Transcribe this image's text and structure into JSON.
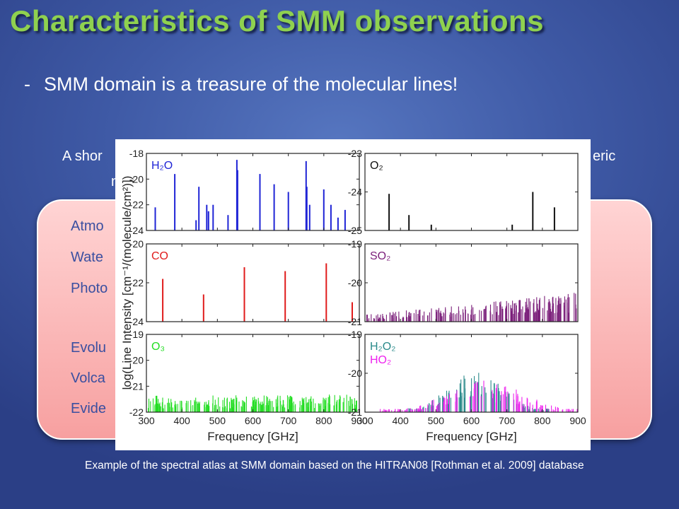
{
  "slide": {
    "title": "Characteristics of SMM observations",
    "bullet_dash": "-",
    "bullet": "SMM domain is a treasure of the molecular lines!",
    "intro_line1_left": "A shor",
    "intro_line1_right": "eric",
    "intro_line2": "m",
    "pink_items": [
      "Atmo",
      "Wate",
      "Photo",
      "Evolu",
      "Volca",
      "Evide"
    ],
    "caption": "Example of the spectral atlas at SMM domain based on the HITRAN08 [Rothman et al. 2009] database"
  },
  "colors": {
    "title": "#8fd14f",
    "H2O": "#1f24d6",
    "O2": "#111111",
    "CO": "#e01b1b",
    "SO2": "#7b1f7a",
    "O3": "#22dd22",
    "H2O2": "#2a8a8a",
    "HO2": "#ee22ee"
  },
  "chart_data": {
    "type": "bar",
    "xlabel": "Frequency [GHz]",
    "ylabel": "log(Line Intensity [cm⁻¹/(molecule/cm²)])",
    "xlim": [
      300,
      900
    ],
    "xticks": [
      300,
      400,
      500,
      600,
      700,
      800,
      900
    ],
    "panels": [
      {
        "id": "H2O",
        "label": "H₂O",
        "side": "left",
        "row": 0,
        "ylim": [
          -24,
          -18
        ],
        "yticks": [
          -24,
          -22,
          -20,
          -18
        ],
        "series": [
          {
            "name": "H₂O",
            "color": "#1f24d6",
            "x": [
              325,
              380,
              440,
              448,
              470,
              475,
              488,
              530,
              555,
              557,
              620,
              660,
              700,
              750,
              752,
              760,
              800,
              820,
              840,
              860
            ],
            "y": [
              -22.2,
              -19.6,
              -23.2,
              -20.6,
              -22.0,
              -22.5,
              -22.0,
              -22.8,
              -18.5,
              -19.3,
              -19.6,
              -20.4,
              -21.0,
              -18.6,
              -20.6,
              -22.0,
              -20.8,
              -22.0,
              -23.0,
              -22.4
            ]
          }
        ]
      },
      {
        "id": "O2",
        "label": "O₂",
        "side": "right",
        "row": 0,
        "ylim": [
          -25,
          -23
        ],
        "yticks": [
          -25,
          -24,
          -23
        ],
        "series": [
          {
            "name": "O₂",
            "color": "#111111",
            "x": [
              368,
              424,
              487,
              715,
              773,
              834
            ],
            "y": [
              -24.05,
              -24.6,
              -24.85,
              -24.85,
              -24.0,
              -24.4
            ]
          }
        ]
      },
      {
        "id": "CO",
        "label": "CO",
        "side": "left",
        "row": 1,
        "ylim": [
          -24,
          -20
        ],
        "yticks": [
          -24,
          -22,
          -20
        ],
        "series": [
          {
            "name": "CO",
            "color": "#e01b1b",
            "x": [
              346,
              461,
              576,
              691,
              807,
              880
            ],
            "y": [
              -21.8,
              -22.6,
              -21.2,
              -21.4,
              -21.0,
              -23.0
            ]
          }
        ]
      },
      {
        "id": "SO2",
        "label": "SO₂",
        "side": "right",
        "row": 1,
        "ylim": [
          -21,
          -19
        ],
        "yticks": [
          -21,
          -20,
          -19
        ],
        "series": [
          {
            "name": "SO₂",
            "color": "#7b1f7a",
            "x": [],
            "y": []
          }
        ]
      },
      {
        "id": "O3",
        "label": "O₃",
        "side": "left",
        "row": 2,
        "ylim": [
          -22,
          -19
        ],
        "yticks": [
          -22,
          -21,
          -20,
          -19
        ],
        "series": [
          {
            "name": "O₃",
            "color": "#22dd22",
            "x": [],
            "y": []
          }
        ]
      },
      {
        "id": "H2O2HO2",
        "label": "",
        "side": "right",
        "row": 2,
        "ylim": [
          -21,
          -19
        ],
        "yticks": [
          -21,
          -20,
          -19
        ],
        "series": [
          {
            "name": "H₂O₂",
            "color": "#2a8a8a",
            "x": [],
            "y": []
          },
          {
            "name": "HO₂",
            "color": "#ee22ee",
            "x": [],
            "y": []
          }
        ]
      }
    ]
  }
}
